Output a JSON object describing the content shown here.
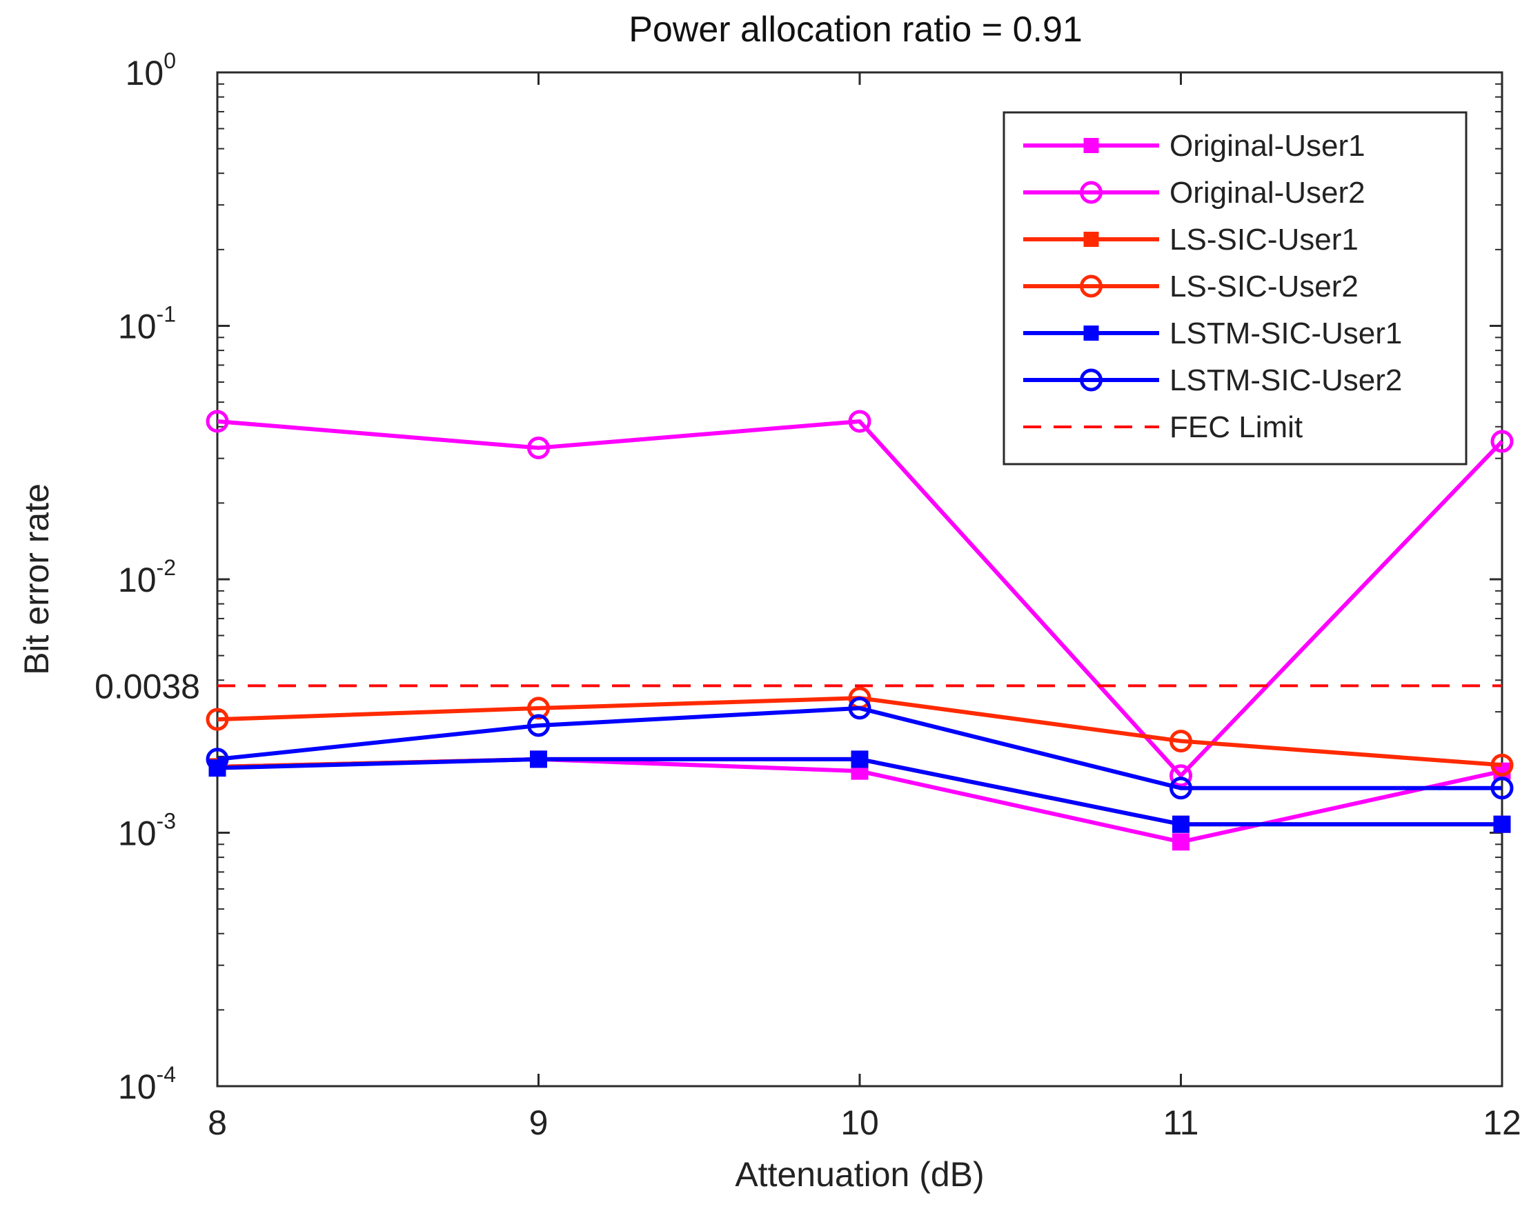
{
  "chart_data": {
    "type": "line",
    "title": "Power allocation ratio = 0.91",
    "xlabel": "Attenuation (dB)",
    "ylabel": "Bit error rate",
    "yscale": "log",
    "x": [
      8,
      9,
      10,
      11,
      12
    ],
    "xlim": [
      8,
      12
    ],
    "ylim": [
      0.0001,
      1
    ],
    "xticks": [
      "8",
      "9",
      "10",
      "11",
      "12"
    ],
    "yticks": [
      {
        "base": "10",
        "exp": "0",
        "value": 1
      },
      {
        "base": "10",
        "exp": "-1",
        "value": 0.1
      },
      {
        "base": "10",
        "exp": "-2",
        "value": 0.01
      },
      {
        "base": "10",
        "exp": "-3",
        "value": 0.001
      },
      {
        "base": "10",
        "exp": "-4",
        "value": 0.0001
      }
    ],
    "extra_ytick": {
      "label": "0.0038",
      "value": 0.0038
    },
    "series": [
      {
        "name": "Original-User1",
        "color": "#ff00ff",
        "marker": "square",
        "values": [
          0.00182,
          0.00195,
          0.00175,
          0.00092,
          0.00175
        ]
      },
      {
        "name": "Original-User2",
        "color": "#ff00ff",
        "marker": "circle",
        "values": [
          0.042,
          0.033,
          0.042,
          0.00168,
          0.035
        ]
      },
      {
        "name": "LS-SIC-User1",
        "color": "#ff2a00",
        "marker": "square",
        "values": [
          0.00182,
          0.00195,
          0.00195,
          0.00108,
          0.00108
        ]
      },
      {
        "name": "LS-SIC-User2",
        "color": "#ff2a00",
        "marker": "circle",
        "values": [
          0.0028,
          0.0031,
          0.0034,
          0.0023,
          0.00185
        ]
      },
      {
        "name": "LSTM-SIC-User1",
        "color": "#0000ff",
        "marker": "square",
        "values": [
          0.0018,
          0.00195,
          0.00195,
          0.00108,
          0.00108
        ]
      },
      {
        "name": "LSTM-SIC-User2",
        "color": "#0000ff",
        "marker": "circle",
        "values": [
          0.00195,
          0.00265,
          0.0031,
          0.0015,
          0.0015
        ]
      },
      {
        "name": "FEC Limit",
        "color": "#ff0000",
        "marker": "none",
        "dashed": true,
        "values": [
          0.0038,
          0.0038,
          0.0038,
          0.0038,
          0.0038
        ]
      }
    ],
    "legend_position": "top-right",
    "grid": false
  }
}
